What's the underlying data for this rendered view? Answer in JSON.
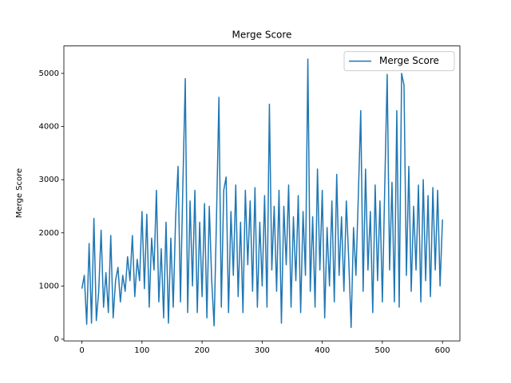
{
  "chart_data": {
    "type": "line",
    "title": "Merge Score",
    "y_label": "Merge Score",
    "x": [
      0,
      4,
      8,
      12,
      16,
      20,
      24,
      28,
      32,
      36,
      40,
      44,
      48,
      52,
      56,
      60,
      64,
      68,
      72,
      76,
      80,
      84,
      88,
      92,
      96,
      100,
      104,
      108,
      112,
      116,
      120,
      124,
      128,
      132,
      136,
      140,
      144,
      148,
      152,
      156,
      160,
      164,
      168,
      172,
      176,
      180,
      184,
      188,
      192,
      196,
      200,
      204,
      208,
      212,
      216,
      220,
      224,
      228,
      232,
      236,
      240,
      244,
      248,
      252,
      256,
      260,
      264,
      268,
      272,
      276,
      280,
      284,
      288,
      292,
      296,
      300,
      304,
      308,
      312,
      316,
      320,
      324,
      328,
      332,
      336,
      340,
      344,
      348,
      352,
      356,
      360,
      364,
      368,
      372,
      376,
      380,
      384,
      388,
      392,
      396,
      400,
      404,
      408,
      412,
      416,
      420,
      424,
      428,
      432,
      436,
      440,
      444,
      448,
      452,
      456,
      460,
      464,
      468,
      472,
      476,
      480,
      484,
      488,
      492,
      496,
      500,
      504,
      508,
      512,
      516,
      520,
      524,
      528,
      532,
      536,
      540,
      544,
      548,
      552,
      556,
      560,
      564,
      568,
      572,
      576,
      580,
      584,
      588,
      592,
      596,
      600
    ],
    "series": [
      {
        "name": "Merge Score",
        "color": "#1f77b4",
        "values": [
          950,
          1200,
          280,
          1800,
          300,
          2270,
          350,
          900,
          2050,
          600,
          1250,
          500,
          1950,
          400,
          1100,
          1350,
          700,
          1200,
          900,
          1550,
          1100,
          1950,
          800,
          1500,
          1100,
          2400,
          950,
          2350,
          600,
          1900,
          1300,
          2800,
          700,
          1700,
          400,
          2200,
          300,
          1900,
          600,
          2300,
          3250,
          700,
          2900,
          4900,
          500,
          2600,
          1000,
          2800,
          500,
          2200,
          800,
          2550,
          400,
          2500,
          1100,
          250,
          2300,
          4550,
          600,
          2800,
          3050,
          500,
          2400,
          1200,
          2900,
          800,
          2200,
          500,
          2800,
          1400,
          2600,
          900,
          2850,
          600,
          2200,
          1000,
          2700,
          600,
          4420,
          1300,
          2500,
          900,
          2800,
          300,
          2500,
          1400,
          2900,
          600,
          2300,
          1100,
          2700,
          500,
          2400,
          1200,
          5270,
          900,
          2300,
          600,
          3200,
          1300,
          2800,
          400,
          2100,
          1000,
          2600,
          700,
          3100,
          1200,
          2300,
          900,
          2600,
          1500,
          220,
          2100,
          1200,
          2700,
          4300,
          900,
          3200,
          1300,
          2400,
          500,
          2900,
          1100,
          2600,
          700,
          2900,
          4980,
          1300,
          2950,
          700,
          4300,
          600,
          5000,
          4780,
          1200,
          3250,
          900,
          2500,
          1300,
          2900,
          700,
          3000,
          1100,
          2700,
          800,
          2850,
          1300,
          2800,
          1000,
          2250
        ]
      }
    ],
    "xlim": [
      -30,
      629
    ],
    "ylim": [
      -33,
      5516
    ],
    "xticks": [
      0,
      100,
      200,
      300,
      400,
      500,
      600
    ],
    "yticks": [
      0,
      1000,
      2000,
      3000,
      4000,
      5000
    ],
    "legend": "upper right"
  }
}
